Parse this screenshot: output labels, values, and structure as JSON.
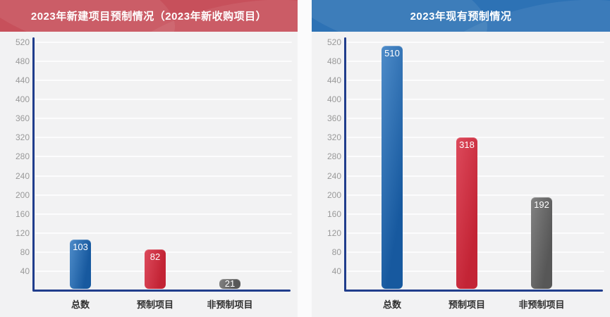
{
  "style": {
    "page_bg": "#fbfbfc",
    "panel_bg": "#f2f2f3",
    "grid_color": "#fcfcfd",
    "axis_color": "#203d8c",
    "tick_color": "#999999",
    "category_color": "#2f2f2f",
    "value_label_color": "#ffffff"
  },
  "chart_data": [
    {
      "type": "bar",
      "title": "2023年新建项目预制情况（2023年新收购项目）",
      "header_color": "#c7505b",
      "categories": [
        "总数",
        "预制项目",
        "非预制项目"
      ],
      "values": [
        103,
        82,
        21
      ],
      "ylim": [
        0,
        520
      ],
      "yticks": [
        40,
        80,
        120,
        160,
        200,
        240,
        280,
        320,
        360,
        400,
        440,
        480,
        520
      ],
      "grid": true,
      "legend": "none",
      "value_labels": "inside-top",
      "bars": [
        {
          "name": "总数",
          "value": 103,
          "color_light": "#4e8cc9",
          "color_dark": "#17599f"
        },
        {
          "name": "预制项目",
          "value": 82,
          "color_light": "#dd4a5c",
          "color_dark": "#c32435"
        },
        {
          "name": "非预制项目",
          "value": 21,
          "color_light": "#828282",
          "color_dark": "#575757"
        }
      ]
    },
    {
      "type": "bar",
      "title": "2023年现有预制情况",
      "header_color": "#2d72b5",
      "categories": [
        "总数",
        "预制项目",
        "非预制项目"
      ],
      "values": [
        510,
        318,
        192
      ],
      "ylim": [
        0,
        520
      ],
      "yticks": [
        40,
        80,
        120,
        160,
        200,
        240,
        280,
        320,
        360,
        400,
        440,
        480,
        520
      ],
      "grid": true,
      "legend": "none",
      "value_labels": "inside-top",
      "bars": [
        {
          "name": "总数",
          "value": 510,
          "color_light": "#4e8cc9",
          "color_dark": "#17599f"
        },
        {
          "name": "预制项目",
          "value": 318,
          "color_light": "#dd4a5c",
          "color_dark": "#c32435"
        },
        {
          "name": "非预制项目",
          "value": 192,
          "color_light": "#828282",
          "color_dark": "#575757"
        }
      ]
    }
  ]
}
